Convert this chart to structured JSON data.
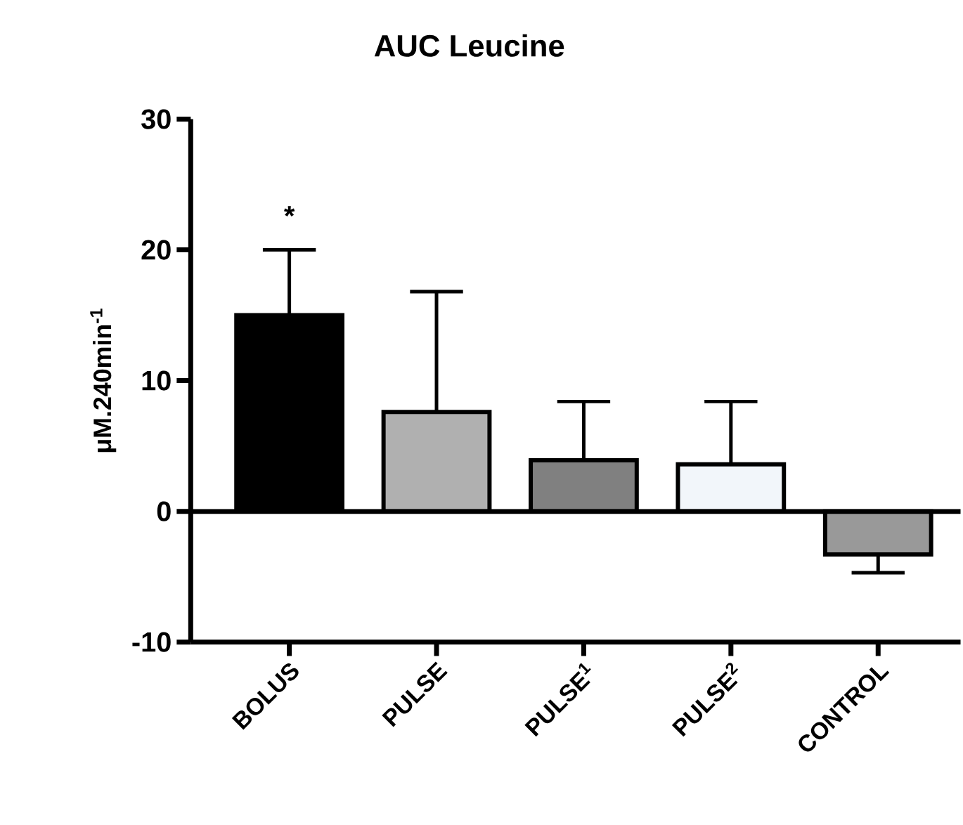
{
  "chart_data": {
    "type": "bar",
    "title": "AUC Leucine",
    "ylabel": "μM.240min$^{-1}$",
    "categories": [
      "BOLUS",
      "PULSE",
      "PULSE$^{1}$",
      "PULSE$^{2}$",
      "CONTROL"
    ],
    "values": [
      15.0,
      7.6,
      3.9,
      3.6,
      -3.3
    ],
    "errors": [
      [
        15.0,
        20.0
      ],
      [
        7.6,
        16.8
      ],
      [
        3.9,
        8.4
      ],
      [
        3.6,
        8.4
      ],
      [
        -4.7,
        -3.3
      ]
    ],
    "colors": [
      "#000000",
      "#b0b0b0",
      "#808080",
      "#f2f6fa",
      "#999999"
    ],
    "ylim": [
      -10,
      30
    ],
    "yticks": [
      -10,
      0,
      10,
      20,
      30
    ],
    "ref_lines": [
      {
        "axis": "y",
        "value": 0
      }
    ],
    "annotations": [
      "*"
    ]
  }
}
